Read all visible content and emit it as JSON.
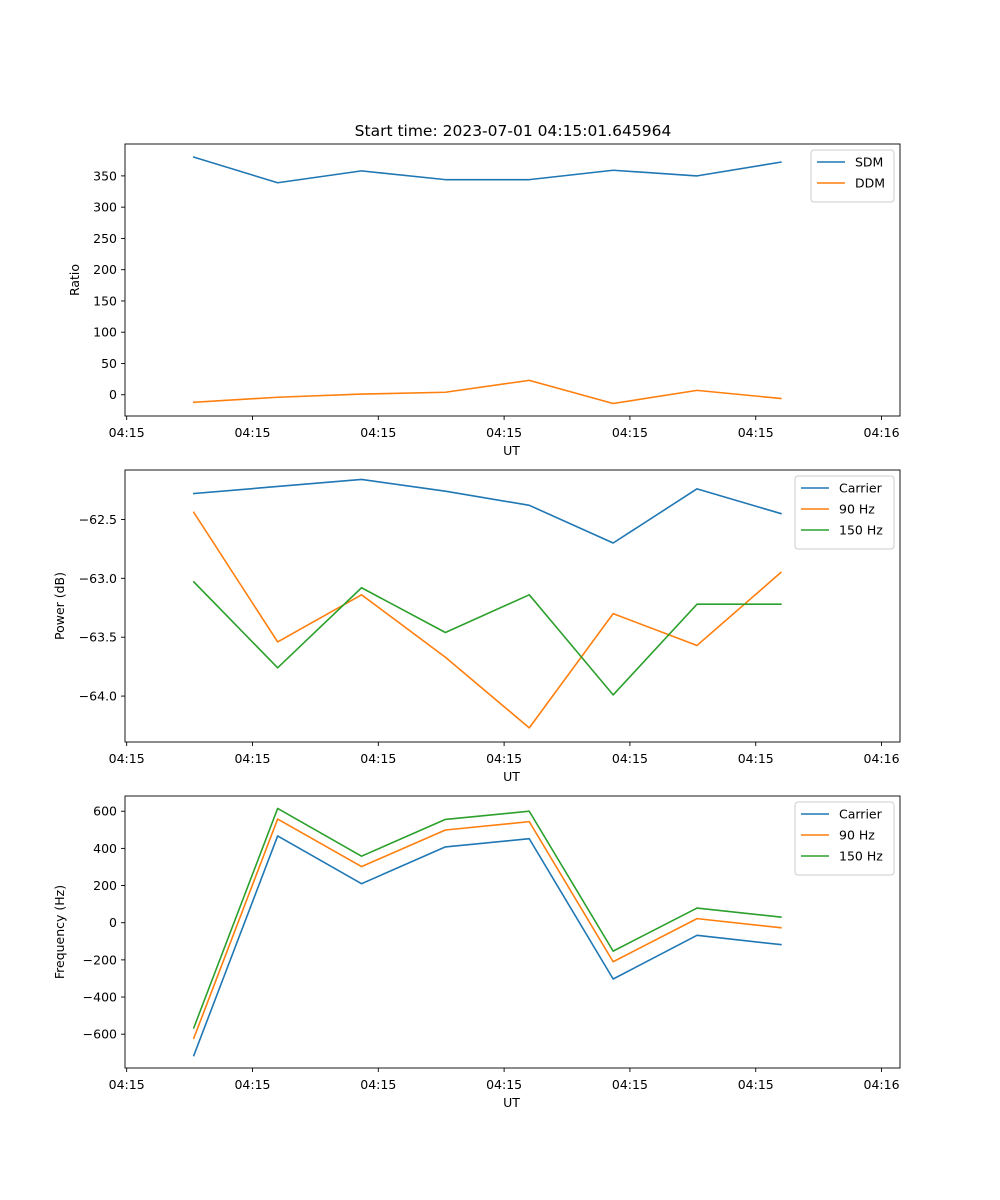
{
  "figure": {
    "title": "Start time: 2023-07-01 04:15:01.645964"
  },
  "colors": {
    "blue": "#1f77b4",
    "orange": "#ff7f0e",
    "green": "#2ca02c"
  },
  "chart_data": [
    {
      "type": "line",
      "title": "Start time: 2023-07-01 04:15:01.645964",
      "xlabel": "UT",
      "ylabel": "Ratio",
      "x": [
        1,
        2,
        3,
        4,
        5,
        6,
        7,
        8
      ],
      "xlim": [
        0.18,
        9.42
      ],
      "xticks": [
        0.2,
        1.7,
        3.2,
        4.7,
        6.2,
        7.7,
        9.2
      ],
      "xtick_labels": [
        "04:15",
        "04:15",
        "04:15",
        "04:15",
        "04:15",
        "04:15",
        "04:16"
      ],
      "ylim": [
        -34,
        401
      ],
      "yticks": [
        0,
        50,
        100,
        150,
        200,
        250,
        300,
        350
      ],
      "ytick_labels": [
        "0",
        "50",
        "100",
        "150",
        "200",
        "250",
        "300",
        "350"
      ],
      "legend": "top-right",
      "series": [
        {
          "name": "SDM",
          "color": "blue",
          "values": [
            380,
            339,
            358,
            344,
            344,
            359,
            350,
            372
          ]
        },
        {
          "name": "DDM",
          "color": "orange",
          "values": [
            -12,
            -4,
            1,
            4,
            23,
            -14,
            7,
            -6
          ]
        }
      ]
    },
    {
      "type": "line",
      "xlabel": "UT",
      "ylabel": "Power (dB)",
      "x": [
        1,
        2,
        3,
        4,
        5,
        6,
        7,
        8
      ],
      "xlim": [
        0.18,
        9.42
      ],
      "xticks": [
        0.2,
        1.7,
        3.2,
        4.7,
        6.2,
        7.7,
        9.2
      ],
      "xtick_labels": [
        "04:15",
        "04:15",
        "04:15",
        "04:15",
        "04:15",
        "04:15",
        "04:16"
      ],
      "ylim": [
        -64.39,
        -62.08
      ],
      "yticks": [
        -64.0,
        -63.5,
        -63.0,
        -62.5
      ],
      "ytick_labels": [
        "−64.0",
        "−63.5",
        "−63.0",
        "−62.5"
      ],
      "legend": "top-right",
      "series": [
        {
          "name": "Carrier",
          "color": "blue",
          "values": [
            -62.28,
            -62.22,
            -62.16,
            -62.26,
            -62.38,
            -62.7,
            -62.24,
            -62.45
          ]
        },
        {
          "name": "90 Hz",
          "color": "orange",
          "values": [
            -62.44,
            -63.54,
            -63.14,
            -63.67,
            -64.27,
            -63.3,
            -63.57,
            -62.95
          ]
        },
        {
          "name": "150 Hz",
          "color": "green",
          "values": [
            -63.03,
            -63.76,
            -63.08,
            -63.46,
            -63.14,
            -63.99,
            -63.22,
            -63.22
          ]
        }
      ]
    },
    {
      "type": "line",
      "xlabel": "UT",
      "ylabel": "Frequency (Hz)",
      "x": [
        1,
        2,
        3,
        4,
        5,
        6,
        7,
        8
      ],
      "xlim": [
        0.18,
        9.42
      ],
      "xticks": [
        0.2,
        1.7,
        3.2,
        4.7,
        6.2,
        7.7,
        9.2
      ],
      "xtick_labels": [
        "04:15",
        "04:15",
        "04:15",
        "04:15",
        "04:15",
        "04:15",
        "04:16"
      ],
      "ylim": [
        -782,
        682
      ],
      "yticks": [
        -600,
        -400,
        -200,
        0,
        200,
        400,
        600
      ],
      "ytick_labels": [
        "−600",
        "−400",
        "−200",
        "0",
        "200",
        "400",
        "600"
      ],
      "legend": "top-right",
      "series": [
        {
          "name": "Carrier",
          "color": "blue",
          "values": [
            -715,
            467,
            210,
            408,
            452,
            -303,
            -68,
            -118
          ]
        },
        {
          "name": "90 Hz",
          "color": "orange",
          "values": [
            -622,
            558,
            302,
            499,
            544,
            -210,
            22,
            -27
          ]
        },
        {
          "name": "150 Hz",
          "color": "green",
          "values": [
            -566,
            615,
            358,
            556,
            600,
            -153,
            79,
            30
          ]
        }
      ]
    }
  ]
}
